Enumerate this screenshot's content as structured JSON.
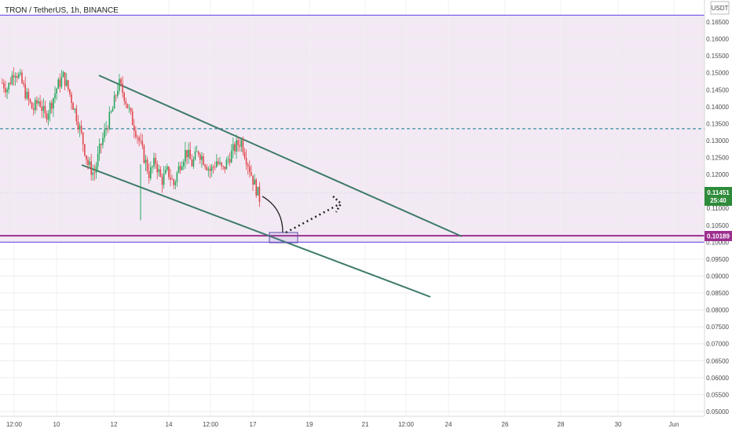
{
  "chart_data": {
    "type": "candlestick",
    "title": "TRON / TetherUS, 1h, BINANCE",
    "currency": "USDT",
    "ylim": [
      0.0495,
      0.1695
    ],
    "yticks": [
      "0.16500",
      "0.16000",
      "0.15500",
      "0.15000",
      "0.14500",
      "0.14000",
      "0.13500",
      "0.13000",
      "0.12500",
      "0.12000",
      "0.11500",
      "0.11000",
      "0.10500",
      "0.10000",
      "0.09500",
      "0.09000",
      "0.08500",
      "0.08000",
      "0.07500",
      "0.07000",
      "0.06500",
      "0.06000",
      "0.05500",
      "0.05000"
    ],
    "xticks": [
      "12:00",
      "10",
      "12",
      "14",
      "12:00",
      "17",
      "19",
      "21",
      "12:00",
      "24",
      "26",
      "28",
      "30",
      "Jun"
    ],
    "current_price": "0.11451",
    "countdown": "25:40",
    "support_price": "0.10189",
    "levels": [
      {
        "price": 0.167,
        "kind": "range-top",
        "color": "#7b61e8"
      },
      {
        "price": 0.1335,
        "kind": "dashed",
        "color": "#3b8ea5"
      },
      {
        "price": 0.1019,
        "kind": "support",
        "color": "#9c2f8f"
      },
      {
        "price": 0.1,
        "kind": "range-bottom",
        "color": "#7b61e8"
      }
    ],
    "price_path": [
      [
        0.147,
        0.145
      ],
      [
        0.146,
        0.151
      ],
      [
        0.151,
        0.148
      ],
      [
        0.148,
        0.143
      ],
      [
        0.143,
        0.139
      ],
      [
        0.139,
        0.142
      ],
      [
        0.142,
        0.137
      ],
      [
        0.137,
        0.141
      ],
      [
        0.141,
        0.146
      ],
      [
        0.146,
        0.149
      ],
      [
        0.149,
        0.144
      ],
      [
        0.144,
        0.138
      ],
      [
        0.138,
        0.131
      ],
      [
        0.131,
        0.123
      ],
      [
        0.123,
        0.12
      ],
      [
        0.12,
        0.128
      ],
      [
        0.128,
        0.134
      ],
      [
        0.134,
        0.139
      ],
      [
        0.139,
        0.147
      ],
      [
        0.147,
        0.143
      ],
      [
        0.143,
        0.137
      ],
      [
        0.137,
        0.132
      ],
      [
        0.132,
        0.126
      ],
      [
        0.126,
        0.12
      ],
      [
        0.12,
        0.124
      ],
      [
        0.124,
        0.118
      ],
      [
        0.118,
        0.121
      ],
      [
        0.121,
        0.117
      ],
      [
        0.117,
        0.123
      ],
      [
        0.123,
        0.127
      ],
      [
        0.127,
        0.123
      ],
      [
        0.123,
        0.127
      ],
      [
        0.127,
        0.124
      ],
      [
        0.124,
        0.121
      ],
      [
        0.121,
        0.124
      ],
      [
        0.124,
        0.121
      ],
      [
        0.121,
        0.125
      ],
      [
        0.125,
        0.128
      ],
      [
        0.128,
        0.13
      ],
      [
        0.13,
        0.124
      ],
      [
        0.124,
        0.118
      ],
      [
        0.118,
        0.113
      ],
      [
        0.113,
        0.11
      ]
    ]
  }
}
